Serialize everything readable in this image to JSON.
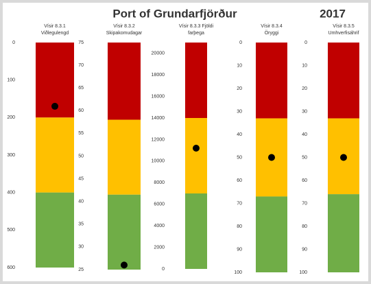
{
  "header": {
    "title": "Port of Grundarfjörður",
    "year": "2017"
  },
  "chart_data": [
    {
      "type": "gauge",
      "subtitle": [
        "Vísir 8.3.1",
        "Viðlegulengd"
      ],
      "ylim": [
        0,
        600
      ],
      "y_inverted": true,
      "yticks": [
        0,
        100,
        200,
        300,
        400,
        500,
        600
      ],
      "bands": [
        {
          "from": 0,
          "to": 200,
          "color": "#c00000"
        },
        {
          "from": 200,
          "to": 400,
          "color": "#ffc000"
        },
        {
          "from": 400,
          "to": 600,
          "color": "#70ad47"
        }
      ],
      "value": 170
    },
    {
      "type": "gauge",
      "subtitle": [
        "Vísir 8.3.2",
        "Skipakomudagar"
      ],
      "ylim": [
        25,
        75
      ],
      "y_inverted": false,
      "yticks": [
        25,
        30,
        35,
        40,
        45,
        50,
        55,
        60,
        65,
        70,
        75
      ],
      "bands": [
        {
          "from": 58,
          "to": 75,
          "color": "#c00000"
        },
        {
          "from": 41.5,
          "to": 58,
          "color": "#ffc000"
        },
        {
          "from": 25,
          "to": 41.5,
          "color": "#70ad47"
        }
      ],
      "value": 26
    },
    {
      "type": "gauge",
      "subtitle": [
        "Vísir 8.3.3 Fjöldi",
        "farþega"
      ],
      "ylim": [
        0,
        21000
      ],
      "y_inverted": false,
      "yticks": [
        0,
        2000,
        4000,
        6000,
        8000,
        10000,
        12000,
        14000,
        16000,
        18000,
        20000
      ],
      "bands": [
        {
          "from": 14000,
          "to": 21000,
          "color": "#c00000"
        },
        {
          "from": 7000,
          "to": 14000,
          "color": "#ffc000"
        },
        {
          "from": 0,
          "to": 7000,
          "color": "#70ad47"
        }
      ],
      "value": 11200
    },
    {
      "type": "gauge",
      "subtitle": [
        "Vísir 8.3.4",
        "Öryggi"
      ],
      "ylim": [
        0,
        100
      ],
      "y_inverted": true,
      "yticks": [
        0,
        10,
        20,
        30,
        40,
        50,
        60,
        70,
        80,
        90,
        100
      ],
      "bands": [
        {
          "from": 0,
          "to": 33,
          "color": "#c00000"
        },
        {
          "from": 33,
          "to": 67,
          "color": "#ffc000"
        },
        {
          "from": 67,
          "to": 100,
          "color": "#70ad47"
        }
      ],
      "value": 50
    },
    {
      "type": "gauge",
      "subtitle": [
        "Vísir 8.3.5",
        "Umhverfisáhrif"
      ],
      "ylim": [
        0,
        100
      ],
      "y_inverted": true,
      "yticks": [
        0,
        10,
        20,
        30,
        40,
        50,
        60,
        70,
        80,
        90,
        100
      ],
      "bands": [
        {
          "from": 0,
          "to": 33,
          "color": "#c00000"
        },
        {
          "from": 33,
          "to": 66,
          "color": "#ffc000"
        },
        {
          "from": 66,
          "to": 100,
          "color": "#70ad47"
        }
      ],
      "value": 50
    }
  ]
}
